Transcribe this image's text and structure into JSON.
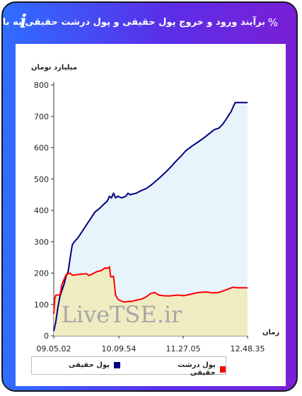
{
  "header": {
    "title": "برآیند ورود و خروج پول حقیقی و پول درشت حقیقی به بازار",
    "info_glyph": "i",
    "link_glyph": "%"
  },
  "watermark": "LiveTSE.ir",
  "colors": {
    "frame_start": "#2f6dff",
    "frame_end": "#7a1fd6",
    "real_money_line": "#000080",
    "real_money_fill": "#e8f4fb",
    "big_money_line": "#ff0000",
    "big_money_fill": "#f0ebbf"
  },
  "chart_data": {
    "type": "area",
    "title": "برآیند ورود و خروج پول حقیقی و پول درشت حقیقی به بازار",
    "ylabel": "میلیارد تومان",
    "xlabel": "زمان",
    "ylim": [
      0,
      800
    ],
    "yticks": [
      0,
      100,
      200,
      300,
      400,
      500,
      600,
      700,
      800
    ],
    "xticks": [
      "09.05.02",
      "10.09.54",
      "11.27.05",
      "12.48.35"
    ],
    "grid": false,
    "legend_position": "bottom",
    "series": [
      {
        "name": "پول حقیقی",
        "color": "#000080",
        "points": [
          [
            0,
            15
          ],
          [
            1,
            45
          ],
          [
            2,
            90
          ],
          [
            3,
            125
          ],
          [
            5,
            165
          ],
          [
            6,
            190
          ],
          [
            7,
            205
          ],
          [
            8,
            250
          ],
          [
            9,
            290
          ],
          [
            10,
            300
          ],
          [
            12,
            315
          ],
          [
            14,
            335
          ],
          [
            16,
            355
          ],
          [
            18,
            375
          ],
          [
            20,
            395
          ],
          [
            22,
            405
          ],
          [
            24,
            418
          ],
          [
            26,
            430
          ],
          [
            27,
            445
          ],
          [
            28,
            440
          ],
          [
            29,
            455
          ],
          [
            30,
            440
          ],
          [
            31,
            445
          ],
          [
            33,
            440
          ],
          [
            35,
            445
          ],
          [
            36,
            455
          ],
          [
            37,
            450
          ],
          [
            40,
            455
          ],
          [
            42,
            462
          ],
          [
            45,
            470
          ],
          [
            48,
            485
          ],
          [
            51,
            502
          ],
          [
            54,
            520
          ],
          [
            57,
            540
          ],
          [
            59,
            555
          ],
          [
            62,
            575
          ],
          [
            64,
            590
          ],
          [
            67,
            605
          ],
          [
            70,
            618
          ],
          [
            73,
            632
          ],
          [
            76,
            648
          ],
          [
            78,
            658
          ],
          [
            80,
            662
          ],
          [
            82,
            675
          ],
          [
            84,
            695
          ],
          [
            86,
            715
          ],
          [
            87,
            730
          ],
          [
            88,
            744
          ],
          [
            90,
            744
          ],
          [
            94,
            744
          ]
        ]
      },
      {
        "name": "پول درشت حقیقی",
        "color": "#ff0000",
        "points": [
          [
            0,
            70
          ],
          [
            0.5,
            120
          ],
          [
            1,
            130
          ],
          [
            3,
            130
          ],
          [
            4,
            165
          ],
          [
            5,
            180
          ],
          [
            6,
            195
          ],
          [
            7,
            198
          ],
          [
            8,
            200
          ],
          [
            9,
            193
          ],
          [
            11,
            195
          ],
          [
            14,
            197
          ],
          [
            16,
            198
          ],
          [
            17,
            192
          ],
          [
            18,
            195
          ],
          [
            21,
            205
          ],
          [
            23,
            208
          ],
          [
            25,
            217
          ],
          [
            26,
            215
          ],
          [
            27,
            220
          ],
          [
            27.6,
            188
          ],
          [
            28,
            188
          ],
          [
            29,
            190
          ],
          [
            29.5,
            160
          ],
          [
            30,
            130
          ],
          [
            31,
            118
          ],
          [
            32,
            113
          ],
          [
            34,
            108
          ],
          [
            38,
            110
          ],
          [
            41,
            115
          ],
          [
            43,
            118
          ],
          [
            45,
            125
          ],
          [
            47,
            135
          ],
          [
            49,
            138
          ],
          [
            51,
            130
          ],
          [
            53,
            128
          ],
          [
            56,
            127
          ],
          [
            60,
            130
          ],
          [
            63,
            128
          ],
          [
            66,
            132
          ],
          [
            70,
            138
          ],
          [
            74,
            140
          ],
          [
            77,
            137
          ],
          [
            80,
            138
          ],
          [
            83,
            145
          ],
          [
            85,
            150
          ],
          [
            87,
            155
          ],
          [
            89,
            153
          ],
          [
            94,
            153
          ]
        ]
      }
    ]
  }
}
